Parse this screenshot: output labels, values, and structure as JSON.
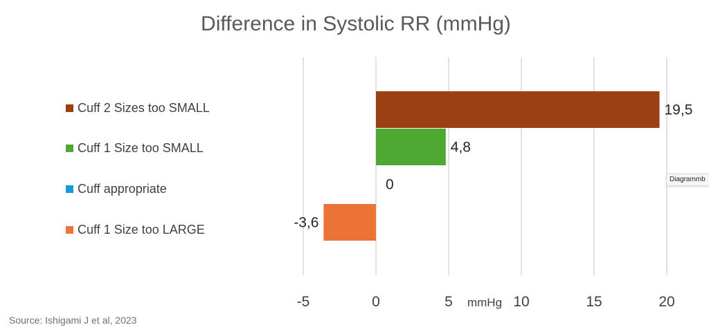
{
  "chart_data": {
    "type": "bar",
    "orientation": "horizontal",
    "title": "Difference in Systolic RR (mmHg)",
    "xlabel": "mmHg",
    "ylabel": "",
    "xlim": [
      -5,
      20
    ],
    "x_ticks": [
      -5,
      0,
      5,
      10,
      15,
      20
    ],
    "x_tick_labels": [
      "-5",
      "0",
      "5",
      "10",
      "15",
      "20"
    ],
    "grid": true,
    "legend_position": "left",
    "categories": [
      "Cuff 2 Sizes too SMALL",
      "Cuff 1 Size too SMALL",
      "Cuff appropriate",
      "Cuff 1 Size too LARGE"
    ],
    "values": [
      19.5,
      4.8,
      0,
      -3.6
    ],
    "data_labels": [
      "19,5",
      "4,8",
      "0",
      "-3,6"
    ],
    "colors": [
      "#9a4012",
      "#4fa832",
      "#1a9bd7",
      "#ea7335"
    ]
  },
  "source": "Source: Ishigami J et al, 2023",
  "tooltip": "Diagrammb"
}
